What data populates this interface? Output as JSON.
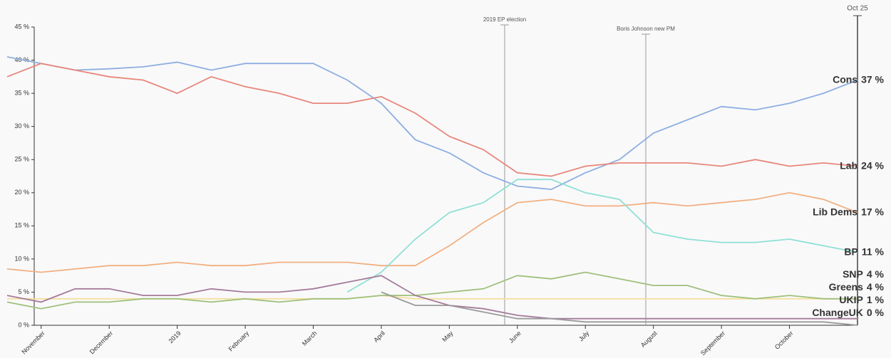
{
  "chart_data": {
    "type": "line",
    "categories": [
      null,
      "November",
      null,
      "December",
      null,
      "2019",
      null,
      "February",
      null,
      "March",
      null,
      "April",
      null,
      "May",
      null,
      "June",
      null,
      "July",
      null,
      "August",
      null,
      "September",
      null,
      "October",
      null,
      null
    ],
    "ylim": [
      0,
      45
    ],
    "yticks": [
      {
        "value": 0,
        "label": "0 %"
      },
      {
        "value": 5,
        "label": "5 %"
      },
      {
        "value": 10,
        "label": "10 %"
      },
      {
        "value": 15,
        "label": "15 %"
      },
      {
        "value": 20,
        "label": "20 %"
      },
      {
        "value": 25,
        "label": "25 %"
      },
      {
        "value": 30,
        "label": "30 %"
      },
      {
        "value": 35,
        "label": "35 %"
      },
      {
        "value": 40,
        "label": "40 %"
      },
      {
        "value": 45,
        "label": "45 %"
      }
    ],
    "annotations": [
      "2019 EP election",
      "Boris Johnson new PM",
      "Oct 25"
    ],
    "series": [
      {
        "name": "Cons",
        "color": "#3b6fc4",
        "line_color": "#8eaee0",
        "values": [
          40.5,
          39.5,
          38.5,
          38.7,
          39,
          39.7,
          38.5,
          39.5,
          39.5,
          39.5,
          37,
          33.5,
          28,
          26,
          23,
          21,
          20.5,
          23,
          25,
          29,
          31,
          33,
          32.5,
          33.5,
          35,
          37
        ],
        "value_labels": [
          null,
          null,
          null,
          null,
          null,
          null,
          null,
          null,
          null,
          null,
          null,
          null,
          null,
          null,
          null,
          null,
          null,
          null,
          null,
          null,
          null,
          null,
          null,
          null,
          null,
          "37 %"
        ]
      },
      {
        "name": "Lab",
        "color": "#d0402a",
        "line_color": "#e8877a",
        "values": [
          37.5,
          39.5,
          38.5,
          37.5,
          37,
          35,
          37.5,
          36,
          35,
          33.5,
          33.5,
          34.5,
          32,
          28.5,
          26.5,
          23,
          22.5,
          24,
          24.5,
          24.5,
          24.5,
          24,
          25,
          24,
          24.5,
          24
        ],
        "value_labels": [
          null,
          null,
          null,
          null,
          null,
          null,
          null,
          null,
          null,
          null,
          null,
          null,
          null,
          null,
          null,
          null,
          null,
          null,
          null,
          null,
          null,
          null,
          null,
          null,
          null,
          "24 %"
        ]
      },
      {
        "name": "Lib Dems",
        "color": "#f0914f",
        "line_color": "#f2b080",
        "values": [
          8.5,
          8,
          8.5,
          9,
          9,
          9.5,
          9,
          9,
          9.5,
          9.5,
          9.5,
          9,
          9,
          12,
          15.5,
          18.5,
          19,
          18,
          18,
          18.5,
          18,
          18.5,
          19,
          20,
          19,
          17
        ],
        "value_labels": [
          null,
          null,
          null,
          null,
          null,
          null,
          null,
          null,
          null,
          null,
          null,
          null,
          null,
          null,
          null,
          null,
          null,
          null,
          null,
          null,
          null,
          null,
          null,
          null,
          null,
          "17 %"
        ]
      },
      {
        "name": "BP",
        "color": "#6fd8cc",
        "line_color": "#8ee0d4",
        "values": [
          null,
          null,
          null,
          null,
          null,
          null,
          null,
          null,
          null,
          null,
          5,
          8,
          13,
          17,
          18.5,
          22,
          22,
          20,
          19,
          14,
          13,
          12.5,
          12.5,
          13,
          12,
          11
        ],
        "value_labels": [
          null,
          null,
          null,
          null,
          null,
          null,
          null,
          null,
          null,
          null,
          null,
          null,
          null,
          null,
          null,
          null,
          null,
          null,
          null,
          null,
          null,
          null,
          null,
          null,
          null,
          "11 %"
        ]
      },
      {
        "name": "SNP",
        "color": "#f5cf5a",
        "line_color": "#f5e0a0",
        "values": [
          4,
          4,
          4,
          4,
          4,
          4,
          4,
          4,
          4,
          4,
          4,
          4.5,
          4,
          4,
          4,
          4,
          4,
          4,
          4,
          4,
          4,
          4,
          4,
          4,
          4,
          4
        ],
        "value_labels": [
          null,
          null,
          null,
          null,
          null,
          null,
          null,
          null,
          null,
          null,
          null,
          null,
          null,
          null,
          null,
          null,
          null,
          null,
          null,
          null,
          null,
          null,
          null,
          null,
          null,
          "4 %"
        ]
      },
      {
        "name": "Greens",
        "color": "#6aa84f",
        "line_color": "#9fc07a",
        "values": [
          3.5,
          2.5,
          3.5,
          3.5,
          4,
          4,
          3.5,
          4,
          3.5,
          4,
          4,
          4.5,
          4.5,
          5,
          5.5,
          7.5,
          7,
          8,
          7,
          6,
          6,
          4.5,
          4,
          4.5,
          4,
          4
        ],
        "value_labels": [
          null,
          null,
          null,
          null,
          null,
          null,
          null,
          null,
          null,
          null,
          null,
          null,
          null,
          null,
          null,
          null,
          null,
          null,
          null,
          null,
          null,
          null,
          null,
          null,
          null,
          "4 %"
        ]
      },
      {
        "name": "UKIP",
        "color": "#7a3060",
        "line_color": "#a57b9a",
        "values": [
          4.5,
          3.5,
          5.5,
          5.5,
          4.5,
          4.5,
          5.5,
          5,
          5,
          5.5,
          6.5,
          7.5,
          4.5,
          3,
          2.5,
          1.5,
          1,
          1,
          1,
          1,
          1,
          1,
          1,
          1,
          1,
          1
        ],
        "value_labels": [
          null,
          null,
          null,
          null,
          null,
          null,
          null,
          null,
          null,
          null,
          null,
          null,
          null,
          null,
          null,
          null,
          null,
          null,
          null,
          null,
          null,
          null,
          null,
          null,
          null,
          "1 %"
        ]
      },
      {
        "name": "ChangeUK",
        "color": "#777777",
        "line_color": "#9a9a9a",
        "values": [
          null,
          null,
          null,
          null,
          null,
          null,
          null,
          null,
          null,
          null,
          null,
          5,
          3,
          3,
          2,
          1,
          1,
          0.5,
          0.5,
          0.5,
          0.5,
          0.5,
          0.5,
          0.5,
          0.5,
          0
        ],
        "value_labels": [
          null,
          null,
          null,
          null,
          null,
          null,
          null,
          null,
          null,
          null,
          null,
          null,
          null,
          null,
          null,
          null,
          null,
          null,
          null,
          null,
          null,
          null,
          null,
          null,
          null,
          "0 %"
        ]
      }
    ]
  }
}
